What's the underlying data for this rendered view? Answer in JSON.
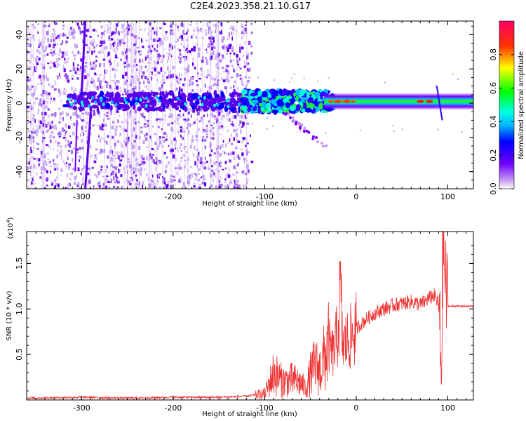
{
  "title": "C2E4.2023.358.21.10.G17",
  "chart_data": [
    {
      "type": "heatmap",
      "xlabel": "Height of straight line (km)",
      "ylabel": "Frequency (Hz)",
      "xlim": [
        -360,
        128
      ],
      "ylim": [
        -50,
        48
      ],
      "xticks": [
        -300,
        -200,
        -100,
        0,
        100
      ],
      "yticks": [
        -40,
        -20,
        0,
        20,
        40
      ],
      "colorbar": {
        "label": "Normalized spectral amplitude",
        "ticks": [
          0.0,
          0.2,
          0.4,
          0.6,
          0.8
        ],
        "range": [
          0,
          1
        ]
      },
      "features": {
        "noise_region_x": [
          -360,
          -115
        ],
        "main_band_frequency_hz": 1,
        "bright_peaks_x": [
          -20,
          -10,
          70,
          80
        ]
      }
    },
    {
      "type": "line",
      "xlabel": "Height of straight line (km)",
      "ylabel": "SNR (10 * v/v)",
      "multiplier_label": "(x10",
      "multiplier_exp": "4",
      "xlim": [
        -360,
        128
      ],
      "ylim": [
        0,
        1.85
      ],
      "xticks": [
        -300,
        -200,
        -100,
        0,
        100
      ],
      "yticks": [
        0.5,
        1.0,
        1.5
      ],
      "ytick_labels": [
        "0.5",
        "1.0",
        "1.5"
      ],
      "series": [
        {
          "color": "#ee3333",
          "x": [
            -360,
            -300,
            -250,
            -200,
            -150,
            -120,
            -100,
            -95,
            -90,
            -80,
            -70,
            -60,
            -55,
            -50,
            -45,
            -40,
            -35,
            -30,
            -25,
            -20,
            -17,
            -15,
            -10,
            -5,
            0,
            10,
            20,
            30,
            40,
            50,
            60,
            70,
            75,
            80,
            85,
            90,
            93,
            95,
            97,
            100,
            110,
            120,
            128
          ],
          "y": [
            0.02,
            0.03,
            0.02,
            0.03,
            0.03,
            0.04,
            0.07,
            0.18,
            0.3,
            0.2,
            0.22,
            0.18,
            0.12,
            0.28,
            0.38,
            0.32,
            0.45,
            0.6,
            0.5,
            0.75,
            1.2,
            0.6,
            0.65,
            0.7,
            0.78,
            0.88,
            0.95,
            1.0,
            1.04,
            1.06,
            1.08,
            1.05,
            1.08,
            1.12,
            1.15,
            1.05,
            0.3,
            1.85,
            1.3,
            1.03,
            1.03,
            1.03,
            1.03
          ]
        }
      ]
    }
  ]
}
